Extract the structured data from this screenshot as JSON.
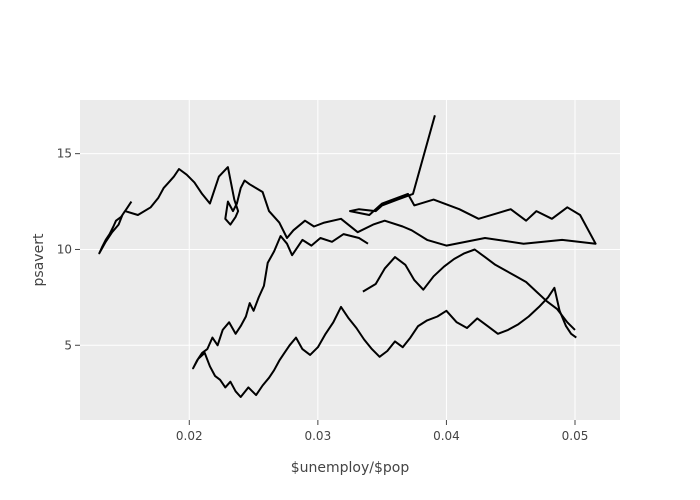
{
  "chart_data": {
    "type": "line",
    "title": "",
    "xlabel": "$unemploy/$pop",
    "ylabel": "psavert",
    "xlim": [
      0.0115,
      0.0535
    ],
    "ylim": [
      1.1,
      17.8
    ],
    "grid": true,
    "legend": "none",
    "colors": {
      "plot_bg": "#ebebeb",
      "grid": "#ffffff",
      "line": "#000000",
      "tick": "#444444"
    },
    "x_ticks": [
      0.02,
      0.03,
      0.04,
      0.05
    ],
    "x_tick_labels": [
      "0.02",
      "0.03",
      "0.04",
      "0.05"
    ],
    "y_ticks": [
      5,
      10,
      15
    ],
    "y_tick_labels": [
      "5",
      "10",
      "15"
    ],
    "series": [
      {
        "x": [
          0.0391,
          0.0374,
          0.0362,
          0.035,
          0.0345,
          0.0332,
          0.0325,
          0.034,
          0.035,
          0.037,
          0.0375,
          0.039,
          0.041,
          0.0425,
          0.044,
          0.045,
          0.0462,
          0.047,
          0.0482,
          0.0494,
          0.0504,
          0.0516,
          0.049,
          0.046,
          0.043,
          0.04,
          0.0385,
          0.0373,
          0.0366,
          0.0352,
          0.0343,
          0.0331,
          0.0318,
          0.0305,
          0.0297,
          0.029,
          0.0281,
          0.0276,
          0.027,
          0.0262,
          0.0257,
          0.0252,
          0.0247,
          0.0243,
          0.024,
          0.0237,
          0.0234,
          0.023,
          0.0228,
          0.0232,
          0.0236,
          0.0238,
          0.0235,
          0.023,
          0.0223,
          0.0216,
          0.021,
          0.0204,
          0.0198,
          0.0192,
          0.0188,
          0.0184,
          0.018,
          0.0176,
          0.017,
          0.016,
          0.015,
          0.0147,
          0.0143,
          0.0141,
          0.0138,
          0.0135,
          0.0132,
          0.013,
          0.0135,
          0.014,
          0.0145,
          0.0148,
          0.0152,
          0.0155
        ],
        "y": [
          17.0,
          12.9,
          12.6,
          12.3,
          12.0,
          12.1,
          12.0,
          11.8,
          12.4,
          12.9,
          12.3,
          12.6,
          12.1,
          11.6,
          11.9,
          12.1,
          11.5,
          12.0,
          11.6,
          12.2,
          11.8,
          10.3,
          10.5,
          10.3,
          10.6,
          10.2,
          10.5,
          11.0,
          11.2,
          11.5,
          11.3,
          10.9,
          11.6,
          11.4,
          11.2,
          11.5,
          11.0,
          10.6,
          11.4,
          12.0,
          13.0,
          13.2,
          13.4,
          13.6,
          13.2,
          12.4,
          12.0,
          12.5,
          11.6,
          11.3,
          11.7,
          12.0,
          12.6,
          14.3,
          13.8,
          12.4,
          12.9,
          13.5,
          13.9,
          14.2,
          13.8,
          13.5,
          13.2,
          12.7,
          12.2,
          11.8,
          12.0,
          11.7,
          11.5,
          11.2,
          10.8,
          10.5,
          10.1,
          9.8,
          10.4,
          10.9,
          11.3,
          11.8,
          12.2,
          12.5
        ]
      },
      {
        "x": [
          0.0339,
          0.0332,
          0.032,
          0.0311,
          0.0302,
          0.0295,
          0.0288,
          0.028,
          0.0276,
          0.0271,
          0.0266,
          0.0261,
          0.0258,
          0.0254,
          0.025,
          0.0247,
          0.0244,
          0.024,
          0.0236,
          0.0231,
          0.0226,
          0.0222,
          0.0218,
          0.0214,
          0.021,
          0.0206,
          0.0203,
          0.0207,
          0.0212,
          0.0216,
          0.022,
          0.0224,
          0.0228,
          0.0232,
          0.0236,
          0.024,
          0.0246,
          0.0252,
          0.0257,
          0.0262,
          0.0266,
          0.027,
          0.0274,
          0.0278,
          0.0283,
          0.0288,
          0.0294,
          0.03,
          0.0306,
          0.0312,
          0.0318,
          0.0324,
          0.033,
          0.0336,
          0.0342,
          0.0348,
          0.0354,
          0.036,
          0.0366,
          0.0372,
          0.0378,
          0.0385,
          0.0393,
          0.04,
          0.0408,
          0.0416,
          0.0424,
          0.0432,
          0.044,
          0.0448,
          0.0456,
          0.0464,
          0.0472,
          0.0479,
          0.0484,
          0.0488,
          0.0493,
          0.0497,
          0.0501
        ],
        "y": [
          10.3,
          10.6,
          10.8,
          10.4,
          10.6,
          10.2,
          10.5,
          9.7,
          10.3,
          10.7,
          9.9,
          9.3,
          8.1,
          7.5,
          6.8,
          7.2,
          6.5,
          6.0,
          5.6,
          6.2,
          5.8,
          5.0,
          5.4,
          4.8,
          4.6,
          4.2,
          3.8,
          4.3,
          4.6,
          3.9,
          3.4,
          3.2,
          2.8,
          3.1,
          2.6,
          2.3,
          2.8,
          2.4,
          2.9,
          3.3,
          3.7,
          4.2,
          4.6,
          5.0,
          5.4,
          4.8,
          4.5,
          4.9,
          5.6,
          6.2,
          7.0,
          6.4,
          5.9,
          5.3,
          4.8,
          4.4,
          4.7,
          5.2,
          4.9,
          5.4,
          6.0,
          6.3,
          6.5,
          6.8,
          6.2,
          5.9,
          6.4,
          6.0,
          5.6,
          5.8,
          6.1,
          6.5,
          7.0,
          7.5,
          8.0,
          6.8,
          6.0,
          5.6,
          5.4
        ]
      },
      {
        "x": [
          0.0335,
          0.0345,
          0.0352,
          0.036,
          0.0368,
          0.0375,
          0.0382,
          0.039,
          0.0398,
          0.0406,
          0.0414,
          0.0422,
          0.043,
          0.0438,
          0.0446,
          0.0454,
          0.0462,
          0.047,
          0.0478,
          0.0486,
          0.0494,
          0.05
        ],
        "y": [
          7.8,
          8.2,
          9.0,
          9.6,
          9.2,
          8.4,
          7.9,
          8.6,
          9.1,
          9.5,
          9.8,
          10.0,
          9.6,
          9.2,
          8.9,
          8.6,
          8.3,
          7.8,
          7.3,
          6.9,
          6.2,
          5.8
        ]
      }
    ]
  }
}
